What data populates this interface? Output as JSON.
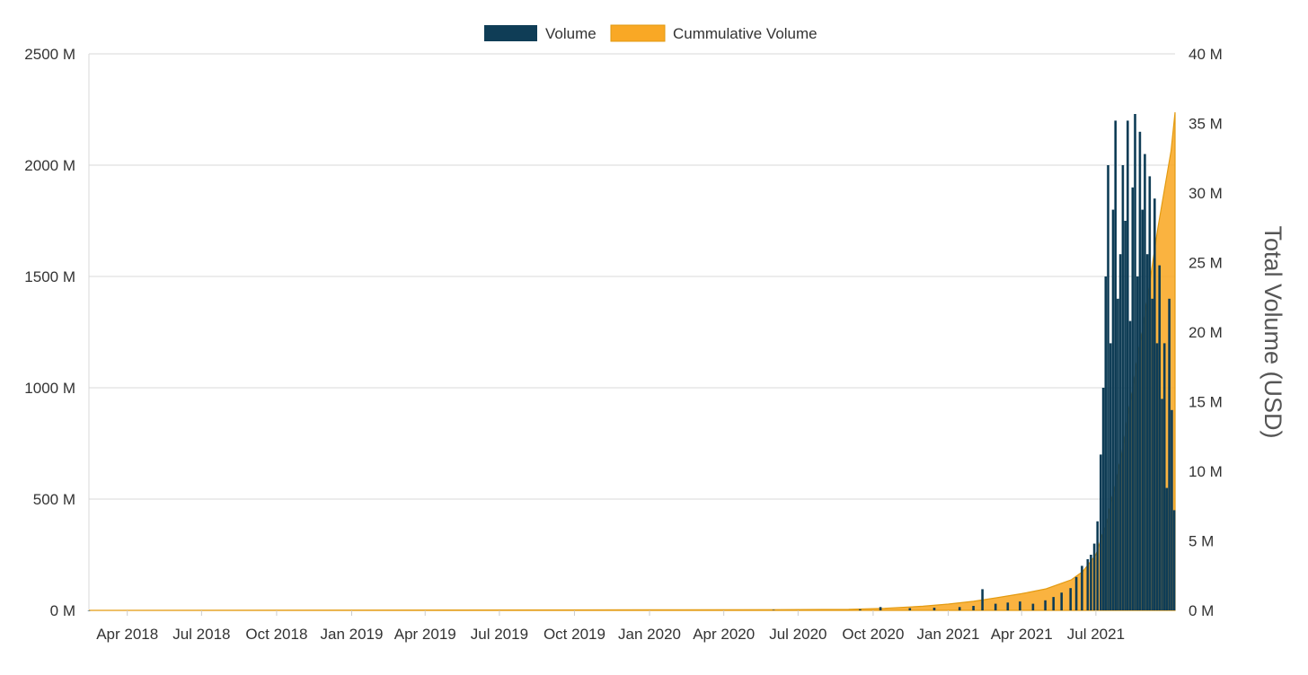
{
  "chart_data": {
    "type": "bar",
    "title": "",
    "xlabel": "",
    "ylabel": "",
    "y2label": "Total Volume (USD)",
    "ylim": [
      0,
      2500
    ],
    "y2lim": [
      0,
      40
    ],
    "grid": true,
    "legend_position": "top-center",
    "x_range": [
      "2018-02-13",
      "2021-10-06"
    ],
    "x_tick_labels": [
      "Apr 2018",
      "Jul 2018",
      "Oct 2018",
      "Jan 2019",
      "Apr 2019",
      "Jul 2019",
      "Oct 2019",
      "Jan 2020",
      "Apr 2020",
      "Jul 2020",
      "Oct 2020",
      "Jan 2021",
      "Apr 2021",
      "Jul 2021"
    ],
    "y_tick_labels": [
      "0 M",
      "500 M",
      "1000 M",
      "1500 M",
      "2000 M",
      "2500 M"
    ],
    "y2_tick_labels": [
      "0 M",
      "5 M",
      "10 M",
      "15 M",
      "20 M",
      "25 M",
      "30 M",
      "35 M",
      "40 M"
    ],
    "series": [
      {
        "name": "Volume",
        "type": "bar",
        "axis": "left",
        "color": "#0f3d56",
        "x": [
          "2018-02-13",
          "2020-06-01",
          "2020-09-15",
          "2020-10-10",
          "2020-11-15",
          "2020-12-15",
          "2021-01-15",
          "2021-02-01",
          "2021-02-12",
          "2021-02-28",
          "2021-03-15",
          "2021-03-30",
          "2021-04-15",
          "2021-04-30",
          "2021-05-10",
          "2021-05-20",
          "2021-05-31",
          "2021-06-07",
          "2021-06-14",
          "2021-06-21",
          "2021-06-25",
          "2021-06-29",
          "2021-07-03",
          "2021-07-07",
          "2021-07-10",
          "2021-07-13",
          "2021-07-16",
          "2021-07-19",
          "2021-07-22",
          "2021-07-25",
          "2021-07-28",
          "2021-07-31",
          "2021-08-03",
          "2021-08-06",
          "2021-08-09",
          "2021-08-12",
          "2021-08-15",
          "2021-08-18",
          "2021-08-21",
          "2021-08-24",
          "2021-08-27",
          "2021-08-30",
          "2021-09-02",
          "2021-09-05",
          "2021-09-08",
          "2021-09-11",
          "2021-09-14",
          "2021-09-17",
          "2021-09-20",
          "2021-09-23",
          "2021-09-26",
          "2021-09-29",
          "2021-10-02",
          "2021-10-05"
        ],
        "values": [
          0,
          2,
          5,
          15,
          10,
          12,
          15,
          20,
          95,
          30,
          35,
          40,
          30,
          45,
          60,
          80,
          100,
          150,
          200,
          230,
          250,
          300,
          400,
          700,
          1000,
          1500,
          2000,
          1200,
          1800,
          2200,
          1400,
          1600,
          2000,
          1750,
          2200,
          1300,
          1900,
          2230,
          1500,
          2150,
          1800,
          2050,
          1600,
          1950,
          1400,
          1850,
          1200,
          1550,
          950,
          1200,
          550,
          1400,
          900,
          450
        ]
      },
      {
        "name": "Cummulative Volume",
        "type": "area",
        "axis": "right",
        "color": "#f9a825",
        "x": [
          "2018-02-13",
          "2019-01-01",
          "2020-01-01",
          "2020-06-01",
          "2020-09-01",
          "2020-10-15",
          "2020-12-01",
          "2021-01-01",
          "2021-02-01",
          "2021-03-01",
          "2021-04-01",
          "2021-05-01",
          "2021-06-01",
          "2021-06-15",
          "2021-07-01",
          "2021-07-15",
          "2021-08-01",
          "2021-08-15",
          "2021-09-01",
          "2021-09-15",
          "2021-10-01",
          "2021-10-06"
        ],
        "values": [
          0,
          0.02,
          0.04,
          0.05,
          0.08,
          0.15,
          0.3,
          0.45,
          0.65,
          0.9,
          1.2,
          1.55,
          2.2,
          2.8,
          4.0,
          6.5,
          11.0,
          16.0,
          22.0,
          27.5,
          33.0,
          35.8
        ]
      }
    ]
  }
}
